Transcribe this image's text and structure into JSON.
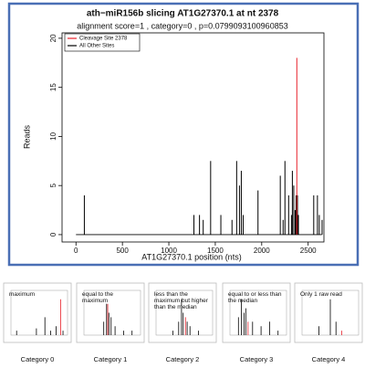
{
  "chart_data": [
    {
      "type": "spike",
      "title": "ath−miR156b slicing AT1G27370.1 at nt 2378",
      "subtitle": "alignment score=1 , category=0 , p=0.0799093100960853",
      "x_label": "AT1G27370.1 position (nts)",
      "y_label": "Reads",
      "xlim": [
        -150,
        2670
      ],
      "ylim": [
        -0.75,
        20.55
      ],
      "xticks": [
        0,
        500,
        1000,
        1500,
        2000,
        2500
      ],
      "yticks": [
        0,
        5,
        10,
        15,
        20
      ],
      "legend": "top-left",
      "series": [
        {
          "name": "Cleavage Site 2378",
          "color": "#e8202a",
          "x": [
            2378
          ],
          "values": [
            18
          ]
        },
        {
          "name": "All Other Sites",
          "color": "#000000",
          "x": [
            90,
            1270,
            1330,
            1370,
            1450,
            1560,
            1680,
            1730,
            1760,
            1780,
            1800,
            1960,
            2200,
            2230,
            2250,
            2290,
            2320,
            2330,
            2345,
            2360,
            2370,
            2385,
            2395,
            2560,
            2600,
            2620,
            2650
          ],
          "values": [
            4,
            2,
            2,
            1.5,
            7.5,
            2,
            1.5,
            7.5,
            5,
            6.5,
            2,
            4.5,
            6,
            1.5,
            7.5,
            4,
            2,
            6.5,
            5,
            2.5,
            4,
            4,
            2,
            4,
            4,
            2,
            1.5
          ]
        }
      ]
    },
    {
      "type": "thumb",
      "caption": "Category 0",
      "annotation": "maximum",
      "xlim": [
        0,
        100
      ],
      "ylim": [
        0,
        10
      ],
      "series": [
        {
          "color": "#e8202a",
          "x": [
            88
          ],
          "values": [
            8
          ]
        },
        {
          "color": "#000000",
          "x": [
            10,
            45,
            60,
            70,
            80,
            92
          ],
          "values": [
            1,
            1.5,
            4,
            1,
            2,
            1
          ]
        }
      ]
    },
    {
      "type": "thumb",
      "caption": "Category 1",
      "annotation": "equal to the maximum",
      "xlim": [
        0,
        100
      ],
      "ylim": [
        0,
        10
      ],
      "series": [
        {
          "color": "#e8202a",
          "x": [
            42
          ],
          "values": [
            7
          ]
        },
        {
          "color": "#000000",
          "x": [
            35,
            40,
            44,
            48,
            55,
            70,
            85
          ],
          "values": [
            3,
            7,
            5,
            4,
            2,
            1,
            1
          ]
        }
      ]
    },
    {
      "type": "thumb",
      "caption": "Category 2",
      "annotation": "less than the maximum but higher than the median",
      "xlim": [
        0,
        100
      ],
      "ylim": [
        0,
        10
      ],
      "series": [
        {
          "color": "#e8202a",
          "x": [
            52
          ],
          "values": [
            4
          ]
        },
        {
          "color": "#000000",
          "x": [
            30,
            40,
            45,
            48,
            55,
            60,
            75
          ],
          "values": [
            1,
            3,
            8,
            5,
            3,
            2,
            1
          ]
        }
      ]
    },
    {
      "type": "thumb",
      "caption": "Category 3",
      "annotation": "equal to or less than the median",
      "xlim": [
        0,
        100
      ],
      "ylim": [
        0,
        10
      ],
      "series": [
        {
          "color": "#e8202a",
          "x": [
            32
          ],
          "values": [
            3
          ]
        },
        {
          "color": "#000000",
          "x": [
            15,
            20,
            25,
            28,
            40,
            55,
            70,
            85
          ],
          "values": [
            4,
            8,
            5,
            6,
            3,
            2,
            3,
            1
          ]
        }
      ]
    },
    {
      "type": "thumb",
      "caption": "Category 4",
      "annotation": "Only 1 raw read",
      "xlim": [
        0,
        100
      ],
      "ylim": [
        0,
        10
      ],
      "series": [
        {
          "color": "#e8202a",
          "x": [
            70
          ],
          "values": [
            1
          ]
        },
        {
          "color": "#000000",
          "x": [
            30,
            50,
            60
          ],
          "values": [
            2,
            8,
            3
          ]
        }
      ]
    }
  ]
}
